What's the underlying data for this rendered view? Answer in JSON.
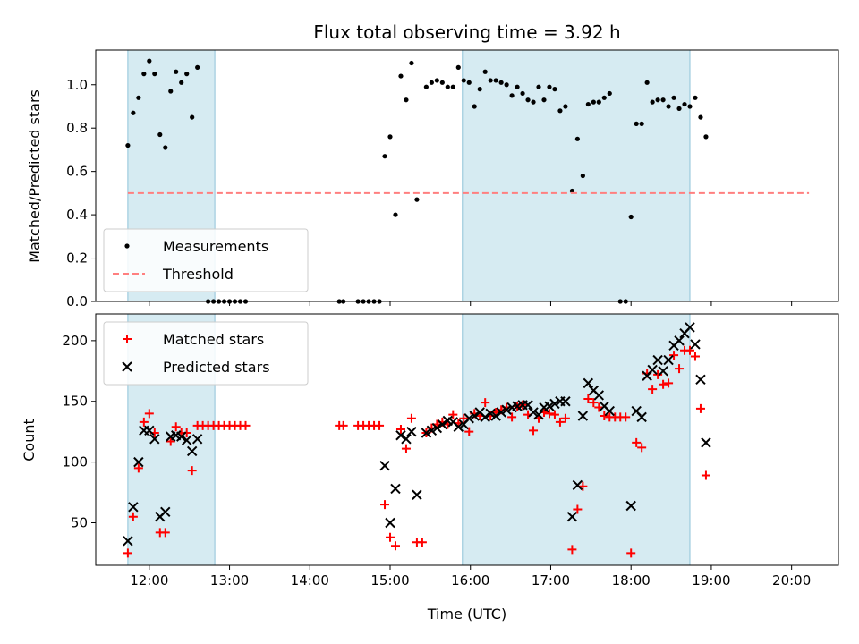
{
  "chart_data": [
    {
      "type": "scatter",
      "title": "Flux total observing time = 3.92 h",
      "xlabel": "",
      "ylabel": "Matched/Predicted stars",
      "xlim": [
        "11:20",
        "20:35"
      ],
      "ylim": [
        0,
        1.16
      ],
      "yticks": [
        "0.0",
        "0.2",
        "0.4",
        "0.6",
        "0.8",
        "1.0"
      ],
      "shaded_intervals": [
        [
          "11:44",
          "12:49"
        ],
        [
          "15:54",
          "18:44"
        ]
      ],
      "legend_position": "lower-left",
      "series": [
        {
          "name": "Measurements",
          "marker": "dot",
          "color": "#000000",
          "points": [
            [
              "11:44",
              0.72
            ],
            [
              "11:48",
              0.87
            ],
            [
              "11:52",
              0.94
            ],
            [
              "11:56",
              1.05
            ],
            [
              "12:00",
              1.11
            ],
            [
              "12:04",
              1.05
            ],
            [
              "12:08",
              0.77
            ],
            [
              "12:12",
              0.71
            ],
            [
              "12:16",
              0.97
            ],
            [
              "12:20",
              1.06
            ],
            [
              "12:24",
              1.01
            ],
            [
              "12:28",
              1.05
            ],
            [
              "12:32",
              0.85
            ],
            [
              "12:36",
              1.08
            ],
            [
              "12:44",
              0.0
            ],
            [
              "12:48",
              0.0
            ],
            [
              "12:52",
              0.0
            ],
            [
              "12:56",
              0.0
            ],
            [
              "13:00",
              0.0
            ],
            [
              "13:04",
              0.0
            ],
            [
              "13:08",
              0.0
            ],
            [
              "13:12",
              0.0
            ],
            [
              "14:22",
              0.0
            ],
            [
              "14:25",
              0.0
            ],
            [
              "14:36",
              0.0
            ],
            [
              "14:40",
              0.0
            ],
            [
              "14:44",
              0.0
            ],
            [
              "14:48",
              0.0
            ],
            [
              "14:52",
              0.0
            ],
            [
              "14:56",
              0.67
            ],
            [
              "15:00",
              0.76
            ],
            [
              "15:04",
              0.4
            ],
            [
              "15:08",
              1.04
            ],
            [
              "15:12",
              0.93
            ],
            [
              "15:16",
              1.1
            ],
            [
              "15:20",
              0.47
            ],
            [
              "15:27",
              0.99
            ],
            [
              "15:31",
              1.01
            ],
            [
              "15:35",
              1.02
            ],
            [
              "15:39",
              1.01
            ],
            [
              "15:43",
              0.99
            ],
            [
              "15:47",
              0.99
            ],
            [
              "15:51",
              1.08
            ],
            [
              "15:55",
              1.02
            ],
            [
              "15:59",
              1.01
            ],
            [
              "16:03",
              0.9
            ],
            [
              "16:07",
              0.98
            ],
            [
              "16:11",
              1.06
            ],
            [
              "16:15",
              1.02
            ],
            [
              "16:19",
              1.02
            ],
            [
              "16:23",
              1.01
            ],
            [
              "16:27",
              1.0
            ],
            [
              "16:31",
              0.95
            ],
            [
              "16:35",
              0.99
            ],
            [
              "16:39",
              0.96
            ],
            [
              "16:43",
              0.93
            ],
            [
              "16:47",
              0.92
            ],
            [
              "16:51",
              0.99
            ],
            [
              "16:55",
              0.93
            ],
            [
              "16:59",
              0.99
            ],
            [
              "17:03",
              0.98
            ],
            [
              "17:07",
              0.88
            ],
            [
              "17:11",
              0.9
            ],
            [
              "17:16",
              0.51
            ],
            [
              "17:20",
              0.75
            ],
            [
              "17:24",
              0.58
            ],
            [
              "17:28",
              0.91
            ],
            [
              "17:32",
              0.92
            ],
            [
              "17:36",
              0.92
            ],
            [
              "17:40",
              0.94
            ],
            [
              "17:44",
              0.96
            ],
            [
              "17:52",
              0.0
            ],
            [
              "17:56",
              0.0
            ],
            [
              "18:00",
              0.39
            ],
            [
              "18:04",
              0.82
            ],
            [
              "18:08",
              0.82
            ],
            [
              "18:12",
              1.01
            ],
            [
              "18:16",
              0.92
            ],
            [
              "18:20",
              0.93
            ],
            [
              "18:24",
              0.93
            ],
            [
              "18:28",
              0.9
            ],
            [
              "18:32",
              0.94
            ],
            [
              "18:36",
              0.89
            ],
            [
              "18:40",
              0.91
            ],
            [
              "18:44",
              0.9
            ],
            [
              "18:48",
              0.94
            ],
            [
              "18:52",
              0.85
            ],
            [
              "18:56",
              0.76
            ]
          ]
        },
        {
          "name": "Threshold",
          "type": "line",
          "style": "dashed",
          "color": "#ff7f7f",
          "points": [
            [
              "11:44",
              0.5
            ],
            [
              "20:13",
              0.5
            ]
          ]
        }
      ]
    },
    {
      "type": "scatter",
      "title": "",
      "xlabel": "Time (UTC)",
      "ylabel": "Count",
      "xlim": [
        "11:20",
        "20:35"
      ],
      "ylim": [
        15,
        222
      ],
      "xticks": [
        "12:00",
        "13:00",
        "14:00",
        "15:00",
        "16:00",
        "17:00",
        "18:00",
        "19:00",
        "20:00"
      ],
      "yticks": [
        "50",
        "100",
        "150",
        "200"
      ],
      "shaded_intervals": [
        [
          "11:44",
          "12:49"
        ],
        [
          "15:54",
          "18:44"
        ]
      ],
      "legend_position": "upper-left",
      "series": [
        {
          "name": "Matched stars",
          "marker": "plus",
          "color": "#ff0000",
          "points": [
            [
              "11:44",
              25
            ],
            [
              "11:48",
              55
            ],
            [
              "11:52",
              95
            ],
            [
              "11:56",
              133
            ],
            [
              "12:00",
              140
            ],
            [
              "12:04",
              124
            ],
            [
              "12:08",
              42
            ],
            [
              "12:12",
              42
            ],
            [
              "12:16",
              117
            ],
            [
              "12:20",
              129
            ],
            [
              "12:24",
              124
            ],
            [
              "12:28",
              124
            ],
            [
              "12:32",
              93
            ],
            [
              "12:36",
              130
            ],
            [
              "12:40",
              130
            ],
            [
              "12:44",
              130
            ],
            [
              "12:48",
              130
            ],
            [
              "12:52",
              130
            ],
            [
              "12:56",
              130
            ],
            [
              "13:00",
              130
            ],
            [
              "13:04",
              130
            ],
            [
              "13:08",
              130
            ],
            [
              "13:12",
              130
            ],
            [
              "14:22",
              130
            ],
            [
              "14:25",
              130
            ],
            [
              "14:36",
              130
            ],
            [
              "14:40",
              130
            ],
            [
              "14:44",
              130
            ],
            [
              "14:48",
              130
            ],
            [
              "14:52",
              130
            ],
            [
              "14:56",
              65
            ],
            [
              "15:00",
              38
            ],
            [
              "15:04",
              31
            ],
            [
              "15:08",
              127
            ],
            [
              "15:12",
              111
            ],
            [
              "15:16",
              136
            ],
            [
              "15:20",
              34
            ],
            [
              "15:24",
              34
            ],
            [
              "15:27",
              124
            ],
            [
              "15:31",
              128
            ],
            [
              "15:35",
              131
            ],
            [
              "15:39",
              133
            ],
            [
              "15:43",
              131
            ],
            [
              "15:47",
              139
            ],
            [
              "15:51",
              132
            ],
            [
              "15:55",
              136
            ],
            [
              "15:59",
              125
            ],
            [
              "16:03",
              140
            ],
            [
              "16:07",
              138
            ],
            [
              "16:11",
              149
            ],
            [
              "16:15",
              138
            ],
            [
              "16:19",
              141
            ],
            [
              "16:23",
              143
            ],
            [
              "16:27",
              145
            ],
            [
              "16:31",
              137
            ],
            [
              "16:35",
              146
            ],
            [
              "16:39",
              147
            ],
            [
              "16:43",
              139
            ],
            [
              "16:47",
              126
            ],
            [
              "16:51",
              136
            ],
            [
              "16:55",
              141
            ],
            [
              "16:59",
              140
            ],
            [
              "17:03",
              139
            ],
            [
              "17:07",
              133
            ],
            [
              "17:11",
              136
            ],
            [
              "17:16",
              28
            ],
            [
              "17:20",
              61
            ],
            [
              "17:24",
              80
            ],
            [
              "17:28",
              152
            ],
            [
              "17:32",
              149
            ],
            [
              "17:36",
              145
            ],
            [
              "17:40",
              138
            ],
            [
              "17:44",
              137
            ],
            [
              "17:48",
              137
            ],
            [
              "17:52",
              137
            ],
            [
              "17:56",
              137
            ],
            [
              "18:00",
              25
            ],
            [
              "18:04",
              116
            ],
            [
              "18:08",
              112
            ],
            [
              "18:12",
              173
            ],
            [
              "18:16",
              160
            ],
            [
              "18:20",
              172
            ],
            [
              "18:24",
              164
            ],
            [
              "18:28",
              165
            ],
            [
              "18:32",
              188
            ],
            [
              "18:36",
              177
            ],
            [
              "18:40",
              192
            ],
            [
              "18:44",
              192
            ],
            [
              "18:48",
              187
            ],
            [
              "18:52",
              144
            ],
            [
              "18:56",
              89
            ]
          ]
        },
        {
          "name": "Predicted stars",
          "marker": "x",
          "color": "#000000",
          "points": [
            [
              "11:44",
              35
            ],
            [
              "11:48",
              63
            ],
            [
              "11:52",
              100
            ],
            [
              "11:56",
              126
            ],
            [
              "12:00",
              126
            ],
            [
              "12:04",
              119
            ],
            [
              "12:08",
              55
            ],
            [
              "12:12",
              59
            ],
            [
              "12:16",
              121
            ],
            [
              "12:20",
              122
            ],
            [
              "12:24",
              121
            ],
            [
              "12:28",
              118
            ],
            [
              "12:32",
              109
            ],
            [
              "12:36",
              119
            ],
            [
              "14:56",
              97
            ],
            [
              "15:00",
              50
            ],
            [
              "15:04",
              78
            ],
            [
              "15:08",
              122
            ],
            [
              "15:12",
              119
            ],
            [
              "15:16",
              125
            ],
            [
              "15:20",
              73
            ],
            [
              "15:27",
              124
            ],
            [
              "15:31",
              126
            ],
            [
              "15:35",
              128
            ],
            [
              "15:39",
              131
            ],
            [
              "15:43",
              134
            ],
            [
              "15:47",
              133
            ],
            [
              "15:51",
              129
            ],
            [
              "15:55",
              131
            ],
            [
              "15:59",
              136
            ],
            [
              "16:03",
              138
            ],
            [
              "16:07",
              141
            ],
            [
              "16:11",
              137
            ],
            [
              "16:15",
              140
            ],
            [
              "16:19",
              138
            ],
            [
              "16:23",
              141
            ],
            [
              "16:27",
              143
            ],
            [
              "16:31",
              145
            ],
            [
              "16:35",
              146
            ],
            [
              "16:39",
              147
            ],
            [
              "16:43",
              147
            ],
            [
              "16:47",
              141
            ],
            [
              "16:51",
              139
            ],
            [
              "16:55",
              145
            ],
            [
              "16:59",
              146
            ],
            [
              "17:03",
              148
            ],
            [
              "17:07",
              150
            ],
            [
              "17:11",
              150
            ],
            [
              "17:16",
              55
            ],
            [
              "17:20",
              81
            ],
            [
              "17:24",
              138
            ],
            [
              "17:28",
              165
            ],
            [
              "17:32",
              159
            ],
            [
              "17:36",
              155
            ],
            [
              "17:40",
              146
            ],
            [
              "17:44",
              142
            ],
            [
              "18:00",
              64
            ],
            [
              "18:04",
              142
            ],
            [
              "18:08",
              137
            ],
            [
              "18:12",
              171
            ],
            [
              "18:16",
              176
            ],
            [
              "18:20",
              184
            ],
            [
              "18:24",
              175
            ],
            [
              "18:28",
              184
            ],
            [
              "18:32",
              196
            ],
            [
              "18:36",
              200
            ],
            [
              "18:40",
              206
            ],
            [
              "18:44",
              211
            ],
            [
              "18:48",
              197
            ],
            [
              "18:52",
              168
            ],
            [
              "18:56",
              116
            ]
          ]
        }
      ]
    }
  ]
}
